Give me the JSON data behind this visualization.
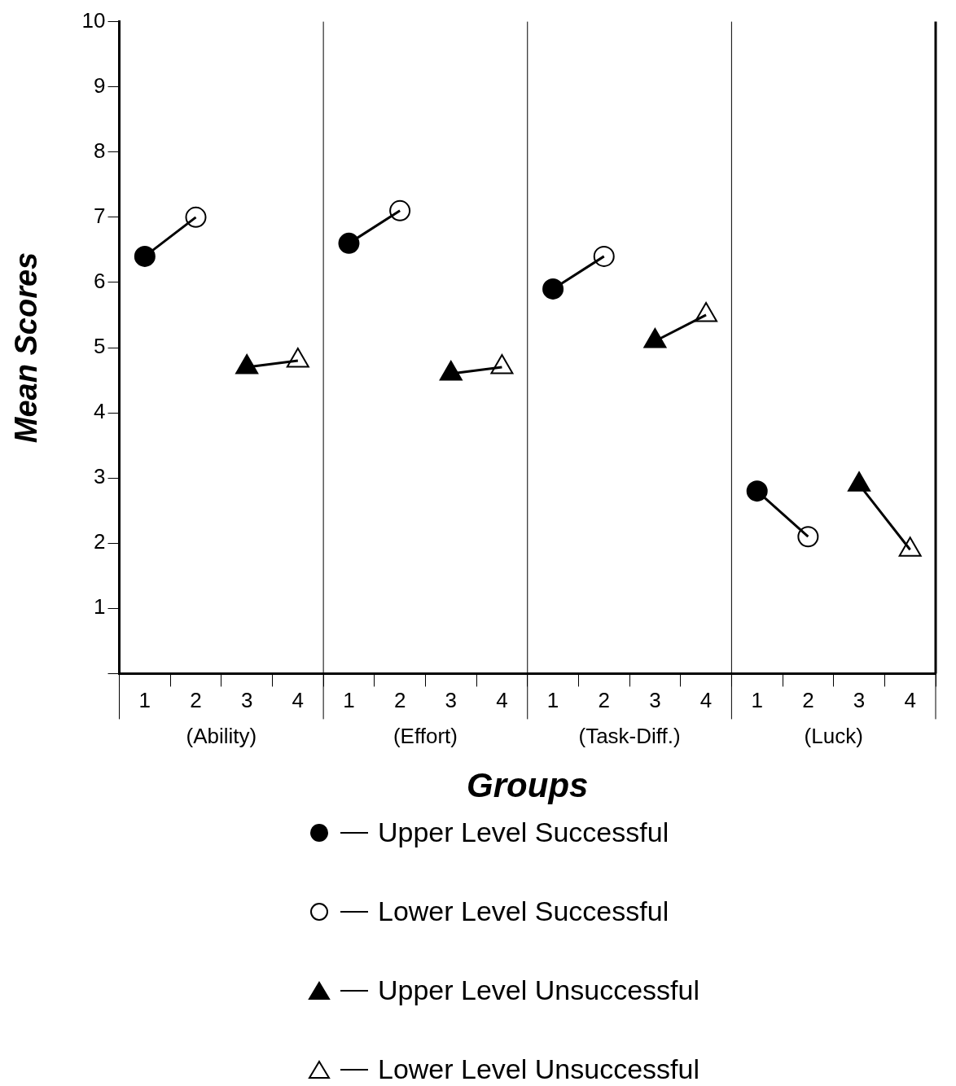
{
  "chart_data": {
    "type": "scatter",
    "xlabel": "Groups",
    "ylabel": "Mean Scores",
    "categories": [
      "1",
      "2",
      "3",
      "4",
      "1",
      "2",
      "3",
      "4",
      "1",
      "2",
      "3",
      "4",
      "1",
      "2",
      "3",
      "4"
    ],
    "annotations": [
      "(Ability)",
      "(Effort)",
      "(Task-Diff.)",
      "(Luck)"
    ],
    "ylim": [
      0,
      10
    ],
    "yticks": [
      {
        "value": 0,
        "label": null
      },
      1,
      2,
      3,
      4,
      5,
      6,
      7,
      8,
      9,
      10
    ],
    "grid": false,
    "legend": "bottom",
    "series": [
      {
        "type": "line",
        "color": "#000000",
        "marker": "none",
        "values": [
          6.4,
          7.0,
          null,
          null,
          6.6,
          7.1,
          null,
          null,
          5.9,
          6.4,
          null,
          null,
          2.8,
          2.1,
          null,
          null
        ]
      },
      {
        "type": "line",
        "color": "#000000",
        "marker": "none",
        "values": [
          null,
          null,
          4.7,
          4.8,
          null,
          null,
          4.6,
          4.7,
          null,
          null,
          5.1,
          5.5,
          null,
          null,
          2.9,
          1.9
        ]
      },
      {
        "name": "Upper Level Successful",
        "color": "#000000",
        "marker": "circle",
        "values": [
          6.4,
          null,
          null,
          null,
          6.6,
          null,
          null,
          null,
          5.9,
          null,
          null,
          null,
          2.8,
          null,
          null,
          null
        ]
      },
      {
        "name": "Lower Level Successful",
        "color": "#ffffff",
        "marker": "circle",
        "values": [
          null,
          7.0,
          null,
          null,
          null,
          7.1,
          null,
          null,
          null,
          6.4,
          null,
          null,
          null,
          2.1,
          null,
          null
        ]
      },
      {
        "name": "Upper Level Unsuccessful",
        "color": "#000000",
        "marker": "triangle",
        "values": [
          null,
          null,
          4.7,
          null,
          null,
          null,
          4.6,
          null,
          null,
          null,
          5.1,
          null,
          null,
          null,
          2.9,
          null
        ]
      },
      {
        "name": "Lower Level Unsuccessful",
        "color": "#ffffff",
        "marker": "triangle",
        "values": [
          null,
          null,
          null,
          4.8,
          null,
          null,
          null,
          4.7,
          null,
          null,
          null,
          5.5,
          null,
          null,
          null,
          1.9
        ]
      }
    ]
  }
}
